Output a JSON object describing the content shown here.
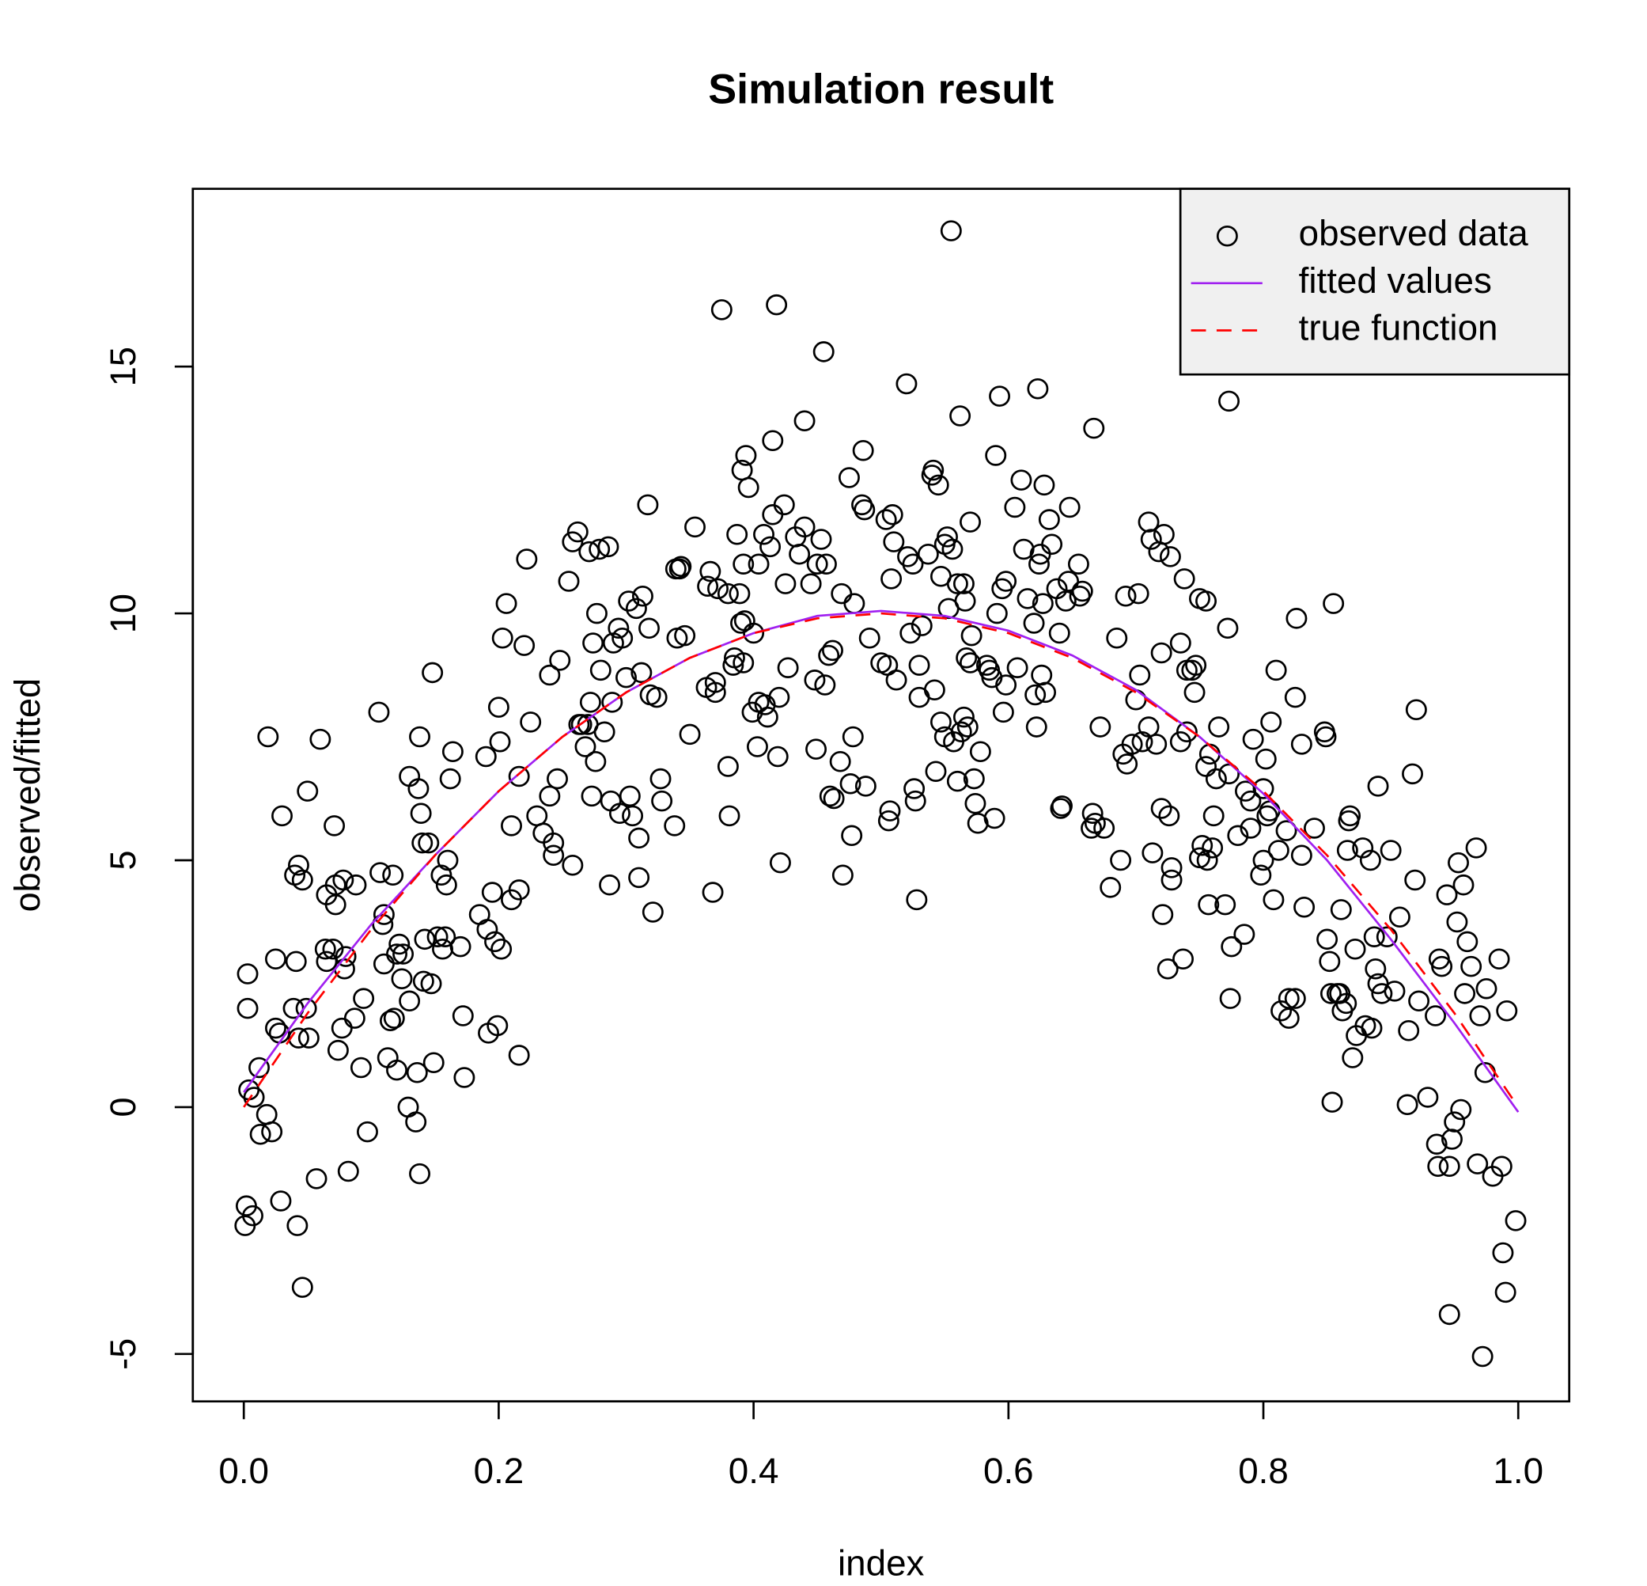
{
  "chart_data": {
    "type": "scatter",
    "title": "Simulation result",
    "x_label": "index",
    "y_label": "observed/fitted",
    "xlim": [
      -0.04,
      1.04
    ],
    "ylim": [
      -5.96,
      18.6
    ],
    "xticks": [
      {
        "value": 0,
        "label": "0.0"
      },
      0.2,
      0.4,
      0.6,
      0.8,
      {
        "value": 1,
        "label": "1.0"
      }
    ],
    "yticks": [
      -5,
      0,
      5,
      10,
      15
    ],
    "legend": "topright",
    "legend_background": "#f0f0f0",
    "series": [
      {
        "name": "observed data",
        "type": "scatter",
        "color": "#000000",
        "x": [
          0.001,
          0.002,
          0.003,
          0.003,
          0.004,
          0.007,
          0.008,
          0.012,
          0.013,
          0.018,
          0.019,
          0.022,
          0.025,
          0.025,
          0.028,
          0.029,
          0.03,
          0.039,
          0.04,
          0.041,
          0.042,
          0.043,
          0.043,
          0.046,
          0.046,
          0.049,
          0.05,
          0.051,
          0.057,
          0.06,
          0.064,
          0.065,
          0.065,
          0.07,
          0.071,
          0.072,
          0.072,
          0.074,
          0.077,
          0.078,
          0.079,
          0.08,
          0.082,
          0.087,
          0.088,
          0.092,
          0.094,
          0.097,
          0.106,
          0.107,
          0.109,
          0.11,
          0.11,
          0.113,
          0.115,
          0.117,
          0.118,
          0.12,
          0.12,
          0.122,
          0.124,
          0.125,
          0.129,
          0.13,
          0.13,
          0.135,
          0.136,
          0.137,
          0.138,
          0.138,
          0.139,
          0.14,
          0.141,
          0.142,
          0.145,
          0.147,
          0.148,
          0.149,
          0.152,
          0.155,
          0.156,
          0.158,
          0.159,
          0.16,
          0.162,
          0.164,
          0.17,
          0.172,
          0.173,
          0.185,
          0.19,
          0.191,
          0.192,
          0.195,
          0.197,
          0.199,
          0.2,
          0.201,
          0.202,
          0.203,
          0.206,
          0.21,
          0.21,
          0.216,
          0.216,
          0.216,
          0.22,
          0.222,
          0.225,
          0.23,
          0.235,
          0.24,
          0.24,
          0.243,
          0.243,
          0.246,
          0.248,
          0.255,
          0.258,
          0.258,
          0.262,
          0.263,
          0.265,
          0.268,
          0.27,
          0.271,
          0.272,
          0.273,
          0.274,
          0.276,
          0.277,
          0.279,
          0.28,
          0.283,
          0.286,
          0.287,
          0.288,
          0.289,
          0.29,
          0.294,
          0.295,
          0.297,
          0.3,
          0.302,
          0.303,
          0.305,
          0.308,
          0.31,
          0.31,
          0.312,
          0.313,
          0.317,
          0.318,
          0.319,
          0.321,
          0.324,
          0.327,
          0.328,
          0.338,
          0.339,
          0.34,
          0.342,
          0.343,
          0.346,
          0.35,
          0.354,
          0.363,
          0.364,
          0.366,
          0.368,
          0.37,
          0.37,
          0.372,
          0.375,
          0.38,
          0.38,
          0.381,
          0.384,
          0.385,
          0.387,
          0.389,
          0.39,
          0.391,
          0.392,
          0.392,
          0.393,
          0.394,
          0.396,
          0.399,
          0.4,
          0.403,
          0.404,
          0.404,
          0.408,
          0.409,
          0.411,
          0.413,
          0.415,
          0.415,
          0.418,
          0.419,
          0.42,
          0.421,
          0.424,
          0.425,
          0.427,
          0.433,
          0.436,
          0.44,
          0.44,
          0.445,
          0.448,
          0.449,
          0.45,
          0.453,
          0.455,
          0.456,
          0.457,
          0.459,
          0.46,
          0.462,
          0.463,
          0.468,
          0.469,
          0.47,
          0.475,
          0.476,
          0.477,
          0.478,
          0.479,
          0.485,
          0.486,
          0.487,
          0.488,
          0.491,
          0.5,
          0.504,
          0.505,
          0.506,
          0.507,
          0.508,
          0.509,
          0.51,
          0.512,
          0.52,
          0.521,
          0.523,
          0.525,
          0.526,
          0.527,
          0.528,
          0.53,
          0.53,
          0.532,
          0.537,
          0.54,
          0.541,
          0.542,
          0.543,
          0.545,
          0.547,
          0.547,
          0.55,
          0.55,
          0.552,
          0.553,
          0.555,
          0.556,
          0.557,
          0.56,
          0.56,
          0.562,
          0.563,
          0.565,
          0.565,
          0.566,
          0.567,
          0.568,
          0.57,
          0.57,
          0.571,
          0.573,
          0.574,
          0.576,
          0.578,
          0.583,
          0.585,
          0.587,
          0.589,
          0.59,
          0.591,
          0.593,
          0.595,
          0.596,
          0.598,
          0.598,
          0.605,
          0.607,
          0.61,
          0.612,
          0.615,
          0.62,
          0.621,
          0.622,
          0.623,
          0.624,
          0.625,
          0.626,
          0.627,
          0.628,
          0.629,
          0.632,
          0.634,
          0.638,
          0.64,
          0.641,
          0.642,
          0.645,
          0.647,
          0.648,
          0.655,
          0.656,
          0.658,
          0.665,
          0.666,
          0.667,
          0.668,
          0.672,
          0.675,
          0.68,
          0.685,
          0.688,
          0.69,
          0.692,
          0.693,
          0.697,
          0.7,
          0.702,
          0.703,
          0.705,
          0.71,
          0.71,
          0.712,
          0.713,
          0.716,
          0.718,
          0.72,
          0.72,
          0.721,
          0.722,
          0.725,
          0.726,
          0.727,
          0.728,
          0.728,
          0.735,
          0.735,
          0.737,
          0.738,
          0.74,
          0.74,
          0.744,
          0.746,
          0.747,
          0.75,
          0.75,
          0.752,
          0.755,
          0.755,
          0.756,
          0.757,
          0.758,
          0.76,
          0.761,
          0.763,
          0.765,
          0.77,
          0.772,
          0.773,
          0.773,
          0.774,
          0.775,
          0.78,
          0.785,
          0.786,
          0.79,
          0.79,
          0.792,
          0.798,
          0.8,
          0.8,
          0.802,
          0.803,
          0.805,
          0.806,
          0.808,
          0.81,
          0.812,
          0.814,
          0.818,
          0.82,
          0.82,
          0.825,
          0.825,
          0.826,
          0.83,
          0.83,
          0.832,
          0.84,
          0.848,
          0.849,
          0.85,
          0.852,
          0.853,
          0.854,
          0.855,
          0.858,
          0.86,
          0.861,
          0.862,
          0.865,
          0.866,
          0.867,
          0.868,
          0.87,
          0.872,
          0.873,
          0.878,
          0.88,
          0.884,
          0.885,
          0.887,
          0.888,
          0.89,
          0.89,
          0.893,
          0.897,
          0.9,
          0.903,
          0.907,
          0.913,
          0.914,
          0.917,
          0.919,
          0.92,
          0.922,
          0.929,
          0.935,
          0.936,
          0.937,
          0.938,
          0.94,
          0.944,
          0.946,
          0.946,
          0.948,
          0.95,
          0.952,
          0.953,
          0.955,
          0.957,
          0.958,
          0.96,
          0.963,
          0.967,
          0.968,
          0.97,
          0.972,
          0.974,
          0.975,
          0.98,
          0.985,
          0.987,
          0.988,
          0.99,
          0.991,
          0.998
        ],
        "values": [
          -2.4,
          -2.0,
          2.7,
          2.0,
          0.35,
          -2.2,
          0.2,
          0.8,
          -0.55,
          -0.15,
          7.5,
          -0.5,
          3.0,
          1.6,
          1.5,
          -1.9,
          5.9,
          2.0,
          4.7,
          2.95,
          -2.4,
          4.9,
          1.4,
          -3.65,
          4.6,
          2.0,
          6.4,
          1.4,
          -1.45,
          7.45,
          3.2,
          4.3,
          2.95,
          3.2,
          5.7,
          4.1,
          4.5,
          1.15,
          1.6,
          4.6,
          2.8,
          3.05,
          -1.3,
          1.8,
          4.5,
          0.8,
          2.2,
          -0.5,
          8.0,
          4.75,
          3.7,
          3.9,
          2.9,
          1.0,
          1.75,
          4.7,
          1.8,
          3.1,
          0.75,
          3.3,
          2.6,
          3.1,
          0.0,
          2.15,
          6.7,
          -0.3,
          0.7,
          6.45,
          -1.35,
          7.5,
          5.95,
          5.35,
          2.55,
          3.4,
          5.35,
          2.5,
          8.8,
          0.9,
          3.45,
          4.7,
          3.2,
          3.45,
          4.5,
          5.0,
          6.65,
          7.2,
          3.25,
          1.85,
          0.6,
          3.9,
          7.1,
          3.6,
          1.5,
          4.35,
          3.35,
          1.65,
          8.1,
          7.4,
          3.2,
          9.5,
          10.2,
          4.2,
          5.7,
          6.7,
          4.4,
          1.05,
          9.35,
          11.1,
          7.8,
          5.9,
          5.55,
          8.75,
          6.3,
          5.35,
          5.1,
          6.65,
          9.05,
          10.65,
          4.9,
          11.45,
          11.65,
          7.75,
          7.75,
          7.3,
          7.75,
          11.25,
          8.2,
          6.3,
          9.4,
          7.0,
          10.0,
          11.3,
          8.85,
          7.6,
          11.35,
          4.5,
          6.2,
          8.2,
          9.4,
          9.7,
          5.95,
          9.5,
          8.7,
          10.25,
          6.3,
          5.9,
          10.1,
          5.45,
          4.65,
          8.8,
          10.35,
          12.2,
          9.7,
          8.35,
          3.95,
          8.3,
          6.65,
          6.2,
          5.7,
          10.9,
          9.5,
          10.9,
          10.95,
          9.55,
          7.55,
          11.75,
          8.5,
          10.55,
          10.85,
          4.35,
          8.4,
          8.6,
          10.5,
          16.15,
          10.4,
          6.9,
          5.9,
          8.95,
          9.1,
          11.6,
          10.4,
          9.8,
          12.9,
          11.0,
          9.0,
          9.85,
          13.2,
          12.55,
          8.0,
          9.6,
          7.3,
          8.2,
          11.0,
          11.6,
          8.15,
          7.9,
          11.35,
          13.5,
          12.0,
          16.25,
          7.1,
          8.3,
          4.95,
          12.2,
          10.6,
          8.9,
          11.55,
          11.2,
          11.75,
          13.9,
          10.6,
          8.65,
          7.25,
          11.0,
          11.5,
          15.3,
          8.55,
          11.0,
          9.15,
          6.3,
          9.25,
          6.25,
          7.0,
          10.4,
          4.7,
          12.75,
          6.55,
          5.5,
          7.5,
          10.2,
          12.2,
          13.3,
          12.1,
          6.5,
          9.5,
          9.0,
          11.9,
          8.95,
          5.8,
          6.0,
          10.7,
          12.0,
          11.45,
          8.65,
          14.65,
          11.15,
          9.6,
          11.0,
          6.45,
          6.2,
          4.2,
          8.95,
          8.3,
          9.75,
          11.2,
          12.8,
          12.9,
          8.45,
          6.8,
          12.6,
          10.75,
          7.8,
          11.4,
          7.5,
          11.55,
          10.1,
          17.75,
          11.3,
          7.4,
          10.6,
          6.6,
          14.0,
          7.6,
          7.9,
          10.6,
          10.25,
          9.1,
          7.7,
          11.85,
          9.0,
          9.55,
          6.65,
          6.15,
          5.75,
          7.2,
          8.95,
          8.85,
          8.7,
          5.85,
          13.2,
          10.0,
          14.4,
          10.5,
          8.0,
          10.65,
          8.55,
          12.15,
          8.9,
          12.7,
          11.3,
          10.3,
          9.8,
          8.35,
          7.7,
          14.55,
          11.0,
          11.2,
          8.75,
          10.2,
          12.6,
          8.4,
          11.9,
          11.4,
          10.5,
          9.6,
          6.05,
          6.1,
          10.25,
          10.65,
          12.15,
          11.0,
          10.35,
          10.45,
          5.65,
          5.95,
          13.75,
          5.75,
          7.7,
          5.65,
          4.45,
          9.5,
          5.0,
          7.15,
          10.35,
          6.95,
          7.35,
          8.25,
          10.4,
          8.75,
          7.4,
          11.85,
          7.7,
          11.5,
          5.15,
          7.35,
          11.25,
          6.05,
          9.2,
          3.9,
          11.6,
          2.8,
          5.9,
          11.15,
          4.6,
          4.85,
          9.4,
          7.4,
          3.0,
          10.7,
          8.85,
          7.6,
          8.85,
          8.4,
          8.95,
          10.3,
          5.05,
          5.3,
          10.25,
          6.9,
          5.0,
          4.1,
          7.15,
          5.25,
          5.9,
          6.65,
          7.7,
          4.1,
          9.7,
          14.3,
          6.75,
          2.2,
          3.25,
          5.5,
          3.5,
          6.4,
          6.2,
          5.65,
          7.45,
          4.7,
          6.45,
          5.0,
          7.05,
          5.9,
          6.0,
          7.8,
          4.2,
          8.85,
          5.2,
          1.95,
          5.6,
          1.8,
          2.2,
          2.2,
          8.3,
          9.9,
          7.35,
          5.1,
          4.05,
          5.65,
          7.6,
          7.5,
          3.4,
          2.95,
          2.3,
          0.1,
          10.2,
          2.3,
          2.3,
          4.0,
          1.95,
          2.1,
          5.2,
          5.8,
          5.9,
          1.0,
          3.2,
          1.45,
          5.25,
          1.65,
          5.0,
          1.6,
          3.45,
          2.8,
          6.5,
          2.5,
          2.3,
          3.45,
          5.2,
          2.35,
          3.85,
          0.05,
          1.55,
          6.75,
          4.6,
          8.05,
          2.15,
          0.2,
          1.85,
          -0.75,
          -1.2,
          3.0,
          2.85,
          4.3,
          -4.2,
          -1.2,
          -0.65,
          -0.3,
          3.75,
          4.95,
          -0.05,
          4.5,
          2.3,
          3.35,
          2.85,
          5.25,
          -1.15,
          1.85,
          -5.05,
          0.7,
          2.4,
          -1.4,
          3.0,
          -1.2,
          -2.95,
          -3.75,
          1.95,
          -2.3
        ]
      },
      {
        "name": "fitted values",
        "type": "line",
        "color": "#a020f0",
        "dashed": false,
        "x": [
          0,
          0.05,
          0.1,
          0.15,
          0.2,
          0.25,
          0.3,
          0.35,
          0.4,
          0.45,
          0.5,
          0.55,
          0.6,
          0.65,
          0.7,
          0.75,
          0.8,
          0.85,
          0.9,
          0.95,
          1
        ],
        "values": [
          0.3,
          2.1,
          3.7,
          5.1,
          6.4,
          7.5,
          8.4,
          9.1,
          9.6,
          9.95,
          10.05,
          9.95,
          9.65,
          9.15,
          8.45,
          7.5,
          6.35,
          5.0,
          3.4,
          1.7,
          -0.1
        ]
      },
      {
        "name": "true function",
        "type": "line",
        "color": "#ff0000",
        "dashed": true,
        "x": [
          0,
          0.05,
          0.1,
          0.15,
          0.2,
          0.25,
          0.3,
          0.35,
          0.4,
          0.45,
          0.5,
          0.55,
          0.6,
          0.65,
          0.7,
          0.75,
          0.8,
          0.85,
          0.9,
          0.95,
          1
        ],
        "values": [
          0,
          1.9,
          3.6,
          5.1,
          6.4,
          7.5,
          8.4,
          9.1,
          9.6,
          9.9,
          10,
          9.9,
          9.6,
          9.1,
          8.4,
          7.5,
          6.4,
          5.1,
          3.6,
          1.9,
          0
        ]
      }
    ]
  }
}
